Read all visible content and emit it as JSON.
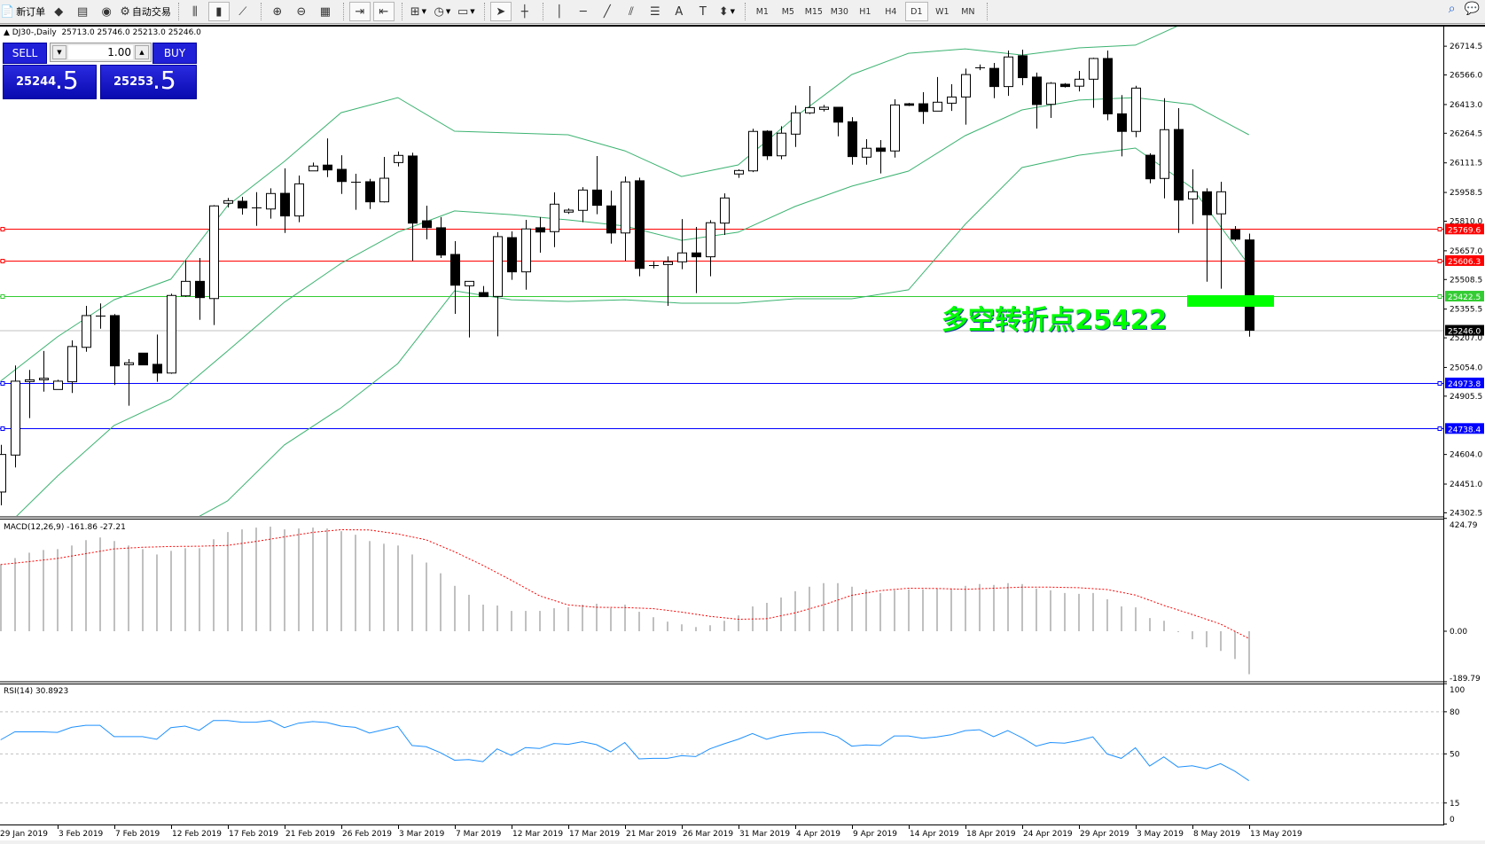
{
  "toolbar": {
    "items": [
      {
        "icon": "new-order-icon",
        "label": "新订单"
      },
      {
        "icon": "market-watch-icon"
      },
      {
        "icon": "data-window-icon"
      },
      {
        "icon": "signals-icon"
      },
      {
        "icon": "auto-trading-icon",
        "label": "自动交易"
      },
      {
        "sep": true
      },
      {
        "icon": "bar-chart-icon"
      },
      {
        "icon": "candlestick-chart-icon",
        "active": true
      },
      {
        "icon": "line-chart-icon"
      },
      {
        "sep": true
      },
      {
        "icon": "zoom-in-icon"
      },
      {
        "icon": "zoom-out-icon"
      },
      {
        "icon": "tile-windows-icon"
      },
      {
        "sep": true
      },
      {
        "icon": "auto-scroll-icon",
        "active": true
      },
      {
        "icon": "chart-shift-icon",
        "active": true
      },
      {
        "sep": true
      },
      {
        "icon": "indicators-icon",
        "dropdown": true
      },
      {
        "icon": "periods-clock-icon",
        "dropdown": true
      },
      {
        "icon": "templates-icon",
        "dropdown": true
      },
      {
        "sep": true
      },
      {
        "icon": "cursor-icon",
        "active": true
      },
      {
        "icon": "crosshair-icon"
      },
      {
        "sep": true
      },
      {
        "icon": "vertical-line-icon"
      },
      {
        "icon": "horizontal-line-icon"
      },
      {
        "icon": "trendline-icon"
      },
      {
        "icon": "equidistant-channel-icon"
      },
      {
        "icon": "fibonacci-icon"
      },
      {
        "icon": "text-icon"
      },
      {
        "icon": "text-label-icon"
      },
      {
        "icon": "arrows-icon",
        "dropdown": true
      },
      {
        "sep": true
      }
    ],
    "timeframes": [
      "M1",
      "M5",
      "M15",
      "M30",
      "H1",
      "H4",
      "D1",
      "W1",
      "MN"
    ],
    "active_timeframe": "D1",
    "right_icons": [
      "search-icon",
      "chat-icon"
    ]
  },
  "chart": {
    "symbol": "DJ30-,Daily",
    "ohlc": "25713.0 25746.0 25213.0 25246.0"
  },
  "trade_panel": {
    "sell_label": "SELL",
    "buy_label": "BUY",
    "lot": "1.00",
    "sell_main": "25244",
    "sell_frac": ".5",
    "buy_main": "25253",
    "buy_frac": ".5"
  },
  "price_axis": [
    "26714.5",
    "26566.0",
    "26413.0",
    "26264.5",
    "26111.5",
    "25958.5",
    "25810.0",
    "25657.0",
    "25508.5",
    "25355.5",
    "25207.0",
    "25054.0",
    "24905.5",
    "24604.0",
    "24451.0",
    "24302.5"
  ],
  "levels": [
    {
      "label": "25769.6",
      "color": "#ff0000"
    },
    {
      "label": "25606.3",
      "color": "#ff0000"
    },
    {
      "label": "25422.5",
      "color": "#33cc33"
    },
    {
      "label": "24973.8",
      "color": "#0000ff"
    },
    {
      "label": "24738.4",
      "color": "#0000ff"
    }
  ],
  "current_price": {
    "label": "25246.0",
    "color": "#000000",
    "line_color": "#c0c0c0"
  },
  "annotation": {
    "text": "多空转折点25422",
    "color": "#00ff00"
  },
  "candles": [
    [
      24410,
      24654,
      24341,
      24604
    ],
    [
      24601,
      25064,
      24537,
      24983
    ],
    [
      24981,
      25041,
      24792,
      24990
    ],
    [
      24990,
      25139,
      24929,
      24998
    ],
    [
      24940,
      24990,
      24940,
      24983
    ],
    [
      24980,
      25194,
      24922,
      25162
    ],
    [
      25158,
      25372,
      25135,
      25322
    ],
    [
      25319,
      25385,
      25254,
      25320
    ],
    [
      25322,
      25330,
      24963,
      25062
    ],
    [
      25068,
      25097,
      24856,
      25078
    ],
    [
      25128,
      25128,
      25067,
      25067
    ],
    [
      25070,
      25224,
      24980,
      25025
    ],
    [
      25025,
      25435,
      25021,
      25426
    ],
    [
      25424,
      25607,
      25418,
      25499
    ],
    [
      25499,
      25620,
      25300,
      25415
    ],
    [
      25410,
      25893,
      25273,
      25889
    ],
    [
      25903,
      25930,
      25881,
      25916
    ],
    [
      25913,
      25936,
      25844,
      25878
    ],
    [
      25879,
      25960,
      25786,
      25880
    ],
    [
      25873,
      25980,
      25823,
      25953
    ],
    [
      25954,
      26083,
      25749,
      25837
    ],
    [
      25837,
      26046,
      25805,
      26003
    ],
    [
      26070,
      26113,
      26070,
      26095
    ],
    [
      26100,
      26238,
      26038,
      26075
    ],
    [
      26078,
      26151,
      25951,
      26015
    ],
    [
      26015,
      26055,
      25869,
      26016
    ],
    [
      26014,
      26029,
      25873,
      25910
    ],
    [
      25910,
      26142,
      25907,
      26032
    ],
    [
      26113,
      26170,
      26093,
      26150
    ],
    [
      26147,
      26164,
      25605,
      25800
    ],
    [
      25812,
      25890,
      25716,
      25777
    ],
    [
      25776,
      25831,
      25620,
      25635
    ],
    [
      25638,
      25707,
      25331,
      25479
    ],
    [
      25476,
      25499,
      25209,
      25499
    ],
    [
      25441,
      25475,
      25420,
      25420
    ],
    [
      25421,
      25753,
      25215,
      25730
    ],
    [
      25725,
      25757,
      25507,
      25548
    ],
    [
      25548,
      25817,
      25456,
      25770
    ],
    [
      25776,
      25831,
      25647,
      25754
    ],
    [
      25756,
      25959,
      25676,
      25898
    ],
    [
      25857,
      25876,
      25848,
      25867
    ],
    [
      25866,
      25986,
      25805,
      25971
    ],
    [
      25971,
      26147,
      25846,
      25892
    ],
    [
      25889,
      25968,
      25694,
      25749
    ],
    [
      25749,
      26041,
      25605,
      26013
    ],
    [
      26019,
      26035,
      25525,
      25566
    ],
    [
      25583,
      25601,
      25566,
      25584
    ],
    [
      25586,
      25628,
      25372,
      25600
    ],
    [
      25600,
      25821,
      25562,
      25646
    ],
    [
      25646,
      25780,
      25438,
      25626
    ],
    [
      25626,
      25815,
      25525,
      25802
    ],
    [
      25800,
      25954,
      25739,
      25930
    ],
    [
      26054,
      26078,
      26034,
      26072
    ],
    [
      26070,
      26288,
      26064,
      26274
    ],
    [
      26275,
      26280,
      26127,
      26148
    ],
    [
      26148,
      26301,
      26130,
      26265
    ],
    [
      26260,
      26408,
      26194,
      26370
    ],
    [
      26370,
      26509,
      26364,
      26397
    ],
    [
      26388,
      26411,
      26377,
      26399
    ],
    [
      26399,
      26399,
      26249,
      26322
    ],
    [
      26324,
      26348,
      26102,
      26144
    ],
    [
      26141,
      26234,
      26102,
      26187
    ],
    [
      26188,
      26229,
      26057,
      26171
    ],
    [
      26173,
      26440,
      26139,
      26411
    ],
    [
      26417,
      26422,
      26405,
      26409
    ],
    [
      26417,
      26477,
      26313,
      26377
    ],
    [
      26379,
      26555,
      26379,
      26425
    ],
    [
      26420,
      26518,
      26380,
      26452
    ],
    [
      26452,
      26599,
      26309,
      26568
    ],
    [
      26605,
      26620,
      26591,
      26606
    ],
    [
      26600,
      26628,
      26446,
      26506
    ],
    [
      26506,
      26692,
      26458,
      26659
    ],
    [
      26665,
      26697,
      26513,
      26552
    ],
    [
      26555,
      26578,
      26289,
      26413
    ],
    [
      26414,
      26529,
      26344,
      26523
    ],
    [
      26518,
      26524,
      26501,
      26506
    ],
    [
      26508,
      26587,
      26481,
      26544
    ],
    [
      26544,
      26655,
      26396,
      26651
    ],
    [
      26651,
      26692,
      26332,
      26365
    ],
    [
      26365,
      26462,
      26145,
      26274
    ],
    [
      26274,
      26510,
      26244,
      26498
    ],
    [
      26151,
      26161,
      26006,
      26029
    ],
    [
      26031,
      26446,
      25928,
      26283
    ],
    [
      26284,
      26394,
      25749,
      25919
    ],
    [
      25925,
      26078,
      25795,
      25962
    ],
    [
      25962,
      25980,
      25497,
      25843
    ],
    [
      25848,
      26014,
      25461,
      25962
    ],
    [
      25766,
      25785,
      25708,
      25717
    ],
    [
      25713,
      25746,
      25213,
      25246
    ]
  ],
  "bollinger": {
    "sample_every_bars": 4,
    "color": "#3cb371",
    "upper": [
      24983,
      25212,
      25404,
      25510,
      25890,
      26119,
      26371,
      26449,
      26275,
      26266,
      26257,
      26174,
      26041,
      26101,
      26348,
      26568,
      26678,
      26701,
      26669,
      26706,
      26720,
      26853,
      26931
    ],
    "middle": [
      24204,
      24492,
      24754,
      24891,
      25139,
      25391,
      25592,
      25753,
      25863,
      25844,
      25817,
      25785,
      25711,
      25753,
      25886,
      25991,
      26069,
      26252,
      26385,
      26436,
      26449,
      26413,
      26257
    ],
    "lower": [
      23745,
      23837,
      24020,
      24204,
      24364,
      24653,
      24845,
      25074,
      25450,
      25404,
      25395,
      25404,
      25386,
      25386,
      25409,
      25409,
      25455,
      25794,
      26087,
      26151,
      26188,
      25982,
      25583
    ]
  },
  "macd": {
    "label": "MACD(12,26,9) -161.86 -27.21",
    "axis": [
      "424.79",
      "0.00",
      "-189.79"
    ],
    "hist_color": "#c0c0c0",
    "signal_color": "#ff0000",
    "histogram": [
      250.7,
      275.4,
      295.6,
      305.7,
      309.1,
      322.6,
      342.8,
      352.9,
      339.4,
      322.6,
      309.1,
      288.9,
      302.4,
      312.5,
      312.5,
      346.2,
      373.2,
      383.3,
      390,
      393.4,
      383.3,
      386.7,
      390,
      386.7,
      376.5,
      363.1,
      339.4,
      329.3,
      322.6,
      288.9,
      258.5,
      218.1,
      170.8,
      137.1,
      100,
      96.7,
      76.4,
      76.4,
      76.4,
      86.5,
      89.9,
      100,
      103.4,
      86.5,
      100,
      73.1,
      52.8,
      36,
      25.9,
      15.7,
      22.5,
      39.3,
      59.6,
      93.3,
      106.8,
      127,
      150.6,
      167.5,
      181,
      181,
      167.5,
      157.4,
      143.9,
      154,
      157.4,
      157.4,
      160.7,
      160.7,
      170.8,
      177.6,
      174.2,
      181,
      177.6,
      160.7,
      154,
      143.9,
      140.5,
      143.9,
      120.3,
      93.3,
      89.9,
      49.5,
      39.3,
      -2.2,
      -30.3,
      -60.7,
      -74.2,
      -104.5,
      -161.86
    ],
    "signal_sample_every_bars": 2,
    "signal": [
      251,
      262,
      274,
      292,
      310,
      316,
      319,
      320,
      323,
      338,
      355,
      372,
      382,
      381,
      366,
      344,
      299,
      248,
      192,
      133,
      99,
      90,
      89,
      85,
      72,
      56,
      45,
      47,
      69,
      99,
      135,
      153,
      162,
      161,
      158,
      162,
      166,
      166,
      164,
      157,
      136,
      97,
      63,
      27,
      -27.21
    ]
  },
  "rsi": {
    "label": "RSI(14) 30.8923",
    "axis": [
      "100",
      "80",
      "50",
      "15",
      "0"
    ],
    "levels": [
      80,
      50,
      15
    ],
    "color": "#1e90ff",
    "values": [
      60.0,
      65.7,
      65.7,
      65.7,
      65.3,
      68.9,
      70.4,
      70.4,
      62.3,
      62.3,
      62.3,
      60.4,
      68.7,
      69.8,
      66.8,
      73.8,
      73.8,
      72.6,
      72.6,
      73.8,
      68.7,
      71.9,
      73.0,
      72.3,
      69.8,
      68.9,
      64.9,
      67.2,
      69.6,
      56.0,
      55.1,
      50.9,
      45.5,
      46.0,
      44.5,
      53.6,
      48.9,
      54.5,
      53.8,
      57.4,
      56.8,
      58.7,
      56.6,
      51.5,
      58.1,
      46.4,
      46.8,
      46.8,
      48.7,
      48.1,
      53.6,
      57.2,
      60.4,
      64.5,
      60.4,
      63.2,
      64.7,
      65.3,
      65.3,
      62.3,
      55.5,
      56.4,
      56.0,
      62.8,
      62.8,
      61.1,
      62.1,
      63.6,
      66.6,
      67.2,
      62.3,
      66.6,
      61.5,
      55.5,
      58.1,
      57.7,
      59.6,
      62.1,
      50.0,
      46.8,
      54.3,
      41.3,
      47.9,
      40.6,
      41.5,
      39.4,
      43.0,
      37.7,
      30.89
    ]
  },
  "dates": [
    "29 Jan 2019",
    "3 Feb 2019",
    "7 Feb 2019",
    "12 Feb 2019",
    "17 Feb 2019",
    "21 Feb 2019",
    "26 Feb 2019",
    "3 Mar 2019",
    "7 Mar 2019",
    "12 Mar 2019",
    "17 Mar 2019",
    "21 Mar 2019",
    "26 Mar 2019",
    "31 Mar 2019",
    "4 Apr 2019",
    "9 Apr 2019",
    "14 Apr 2019",
    "18 Apr 2019",
    "24 Apr 2019",
    "29 Apr 2019",
    "3 May 2019",
    "8 May 2019",
    "13 May 2019"
  ]
}
